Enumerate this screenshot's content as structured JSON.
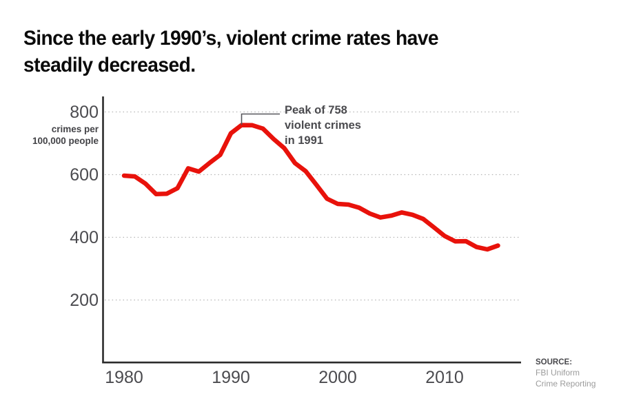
{
  "title": {
    "lines": [
      "Since the early 1990’s, violent crime rates have",
      "steadily decreased."
    ]
  },
  "chart_data": {
    "type": "line",
    "title": "Since the early 1990’s, violent crime rates have steadily decreased.",
    "x": [
      1980,
      1981,
      1982,
      1983,
      1984,
      1985,
      1986,
      1987,
      1988,
      1989,
      1990,
      1991,
      1992,
      1993,
      1994,
      1995,
      1996,
      1997,
      1998,
      1999,
      2000,
      2001,
      2002,
      2003,
      2004,
      2005,
      2006,
      2007,
      2008,
      2009,
      2010,
      2011,
      2012,
      2013,
      2014,
      2015
    ],
    "series": [
      {
        "name": "Violent crime rate",
        "color": "#e8120b",
        "values": [
          596.6,
          594.3,
          571.1,
          537.7,
          539.2,
          556.6,
          620.1,
          609.7,
          637.2,
          663.1,
          731.8,
          758.1,
          757.5,
          746.8,
          713.6,
          684.5,
          636.6,
          611.0,
          567.6,
          523.0,
          506.5,
          504.5,
          494.4,
          475.8,
          463.2,
          469.0,
          479.3,
          471.8,
          458.6,
          431.9,
          404.5,
          387.1,
          387.8,
          369.1,
          361.6,
          373.7
        ]
      }
    ],
    "unit_lines": [
      "crimes per",
      "100,000 people"
    ],
    "yticks": [
      800,
      600,
      400,
      200
    ],
    "ytick_labels": [
      "800",
      "600",
      "400",
      "200"
    ],
    "xticks": [
      1980,
      1990,
      2000,
      2010
    ],
    "xtick_labels": [
      "1980",
      "1990",
      "2000",
      "2010"
    ],
    "ylim": [
      0,
      860
    ],
    "xlim": [
      1979,
      2016
    ],
    "grid": "horizontal-dotted",
    "legend": "none",
    "annotation": {
      "lines": [
        "Peak of 758",
        "violent crimes",
        "in 1991"
      ],
      "target_year": 1991,
      "target_value": 758.1
    },
    "source": {
      "label": "SOURCE:",
      "lines": [
        "FBI Uniform",
        "Crime Reporting"
      ]
    }
  }
}
